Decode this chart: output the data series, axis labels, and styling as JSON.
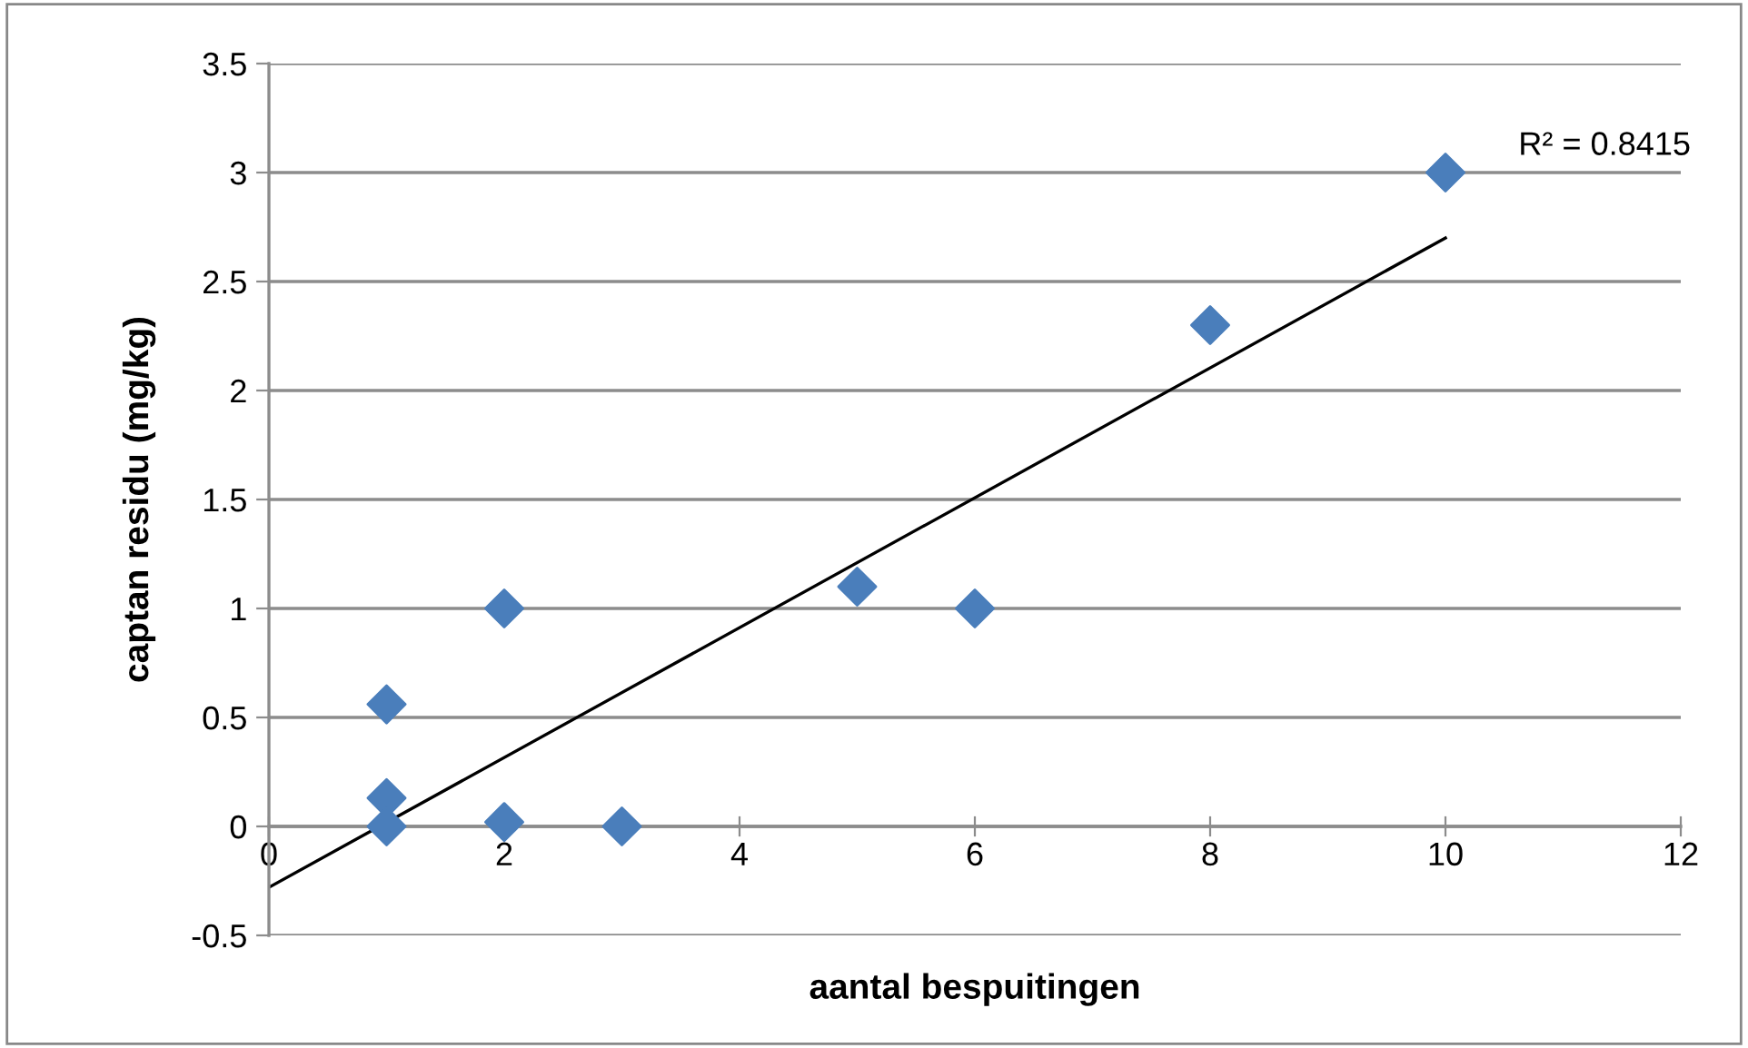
{
  "chart_data": {
    "type": "scatter",
    "xlabel": "aantal bespuitingen",
    "ylabel": "captan residu (mg/kg)",
    "annotations": [
      "R² = 0.8415"
    ],
    "series": [
      {
        "color": "#4a7ebb",
        "marker": "diamond",
        "x": [
          1,
          1,
          1,
          2,
          2,
          3,
          5,
          6,
          8,
          10
        ],
        "values": [
          0.56,
          0.13,
          0,
          1,
          0.02,
          0,
          1.1,
          1,
          2.3,
          3
        ]
      },
      {
        "type": "line",
        "color": "#000000",
        "marker": "none",
        "x": [
          0,
          10
        ],
        "values": [
          -0.28,
          2.7
        ]
      }
    ],
    "xlim": [
      0,
      12
    ],
    "xticks": [
      0,
      2,
      4,
      6,
      8,
      10,
      12
    ],
    "ylim": [
      -0.5,
      3.5
    ],
    "yticks": [
      -0.5,
      0,
      0.5,
      1,
      1.5,
      2,
      2.5,
      3,
      3.5
    ],
    "grid": "y",
    "legend": false
  }
}
